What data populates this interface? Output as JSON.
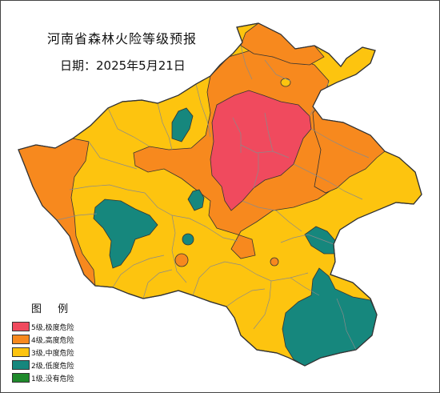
{
  "map": {
    "title": "河南省森林火险等级预报",
    "date": "日期：2025年5月21日"
  },
  "legend": {
    "title": "图 例",
    "items": [
      {
        "label": "5级,极度危险",
        "color": "#f04a5e"
      },
      {
        "label": "4级,高度危险",
        "color": "#f7891e"
      },
      {
        "label": "3级,中度危险",
        "color": "#fdc40f"
      },
      {
        "label": "2级,低度危险",
        "color": "#16877d"
      },
      {
        "label": "1级,没有危险",
        "color": "#1f8a2b"
      }
    ]
  }
}
